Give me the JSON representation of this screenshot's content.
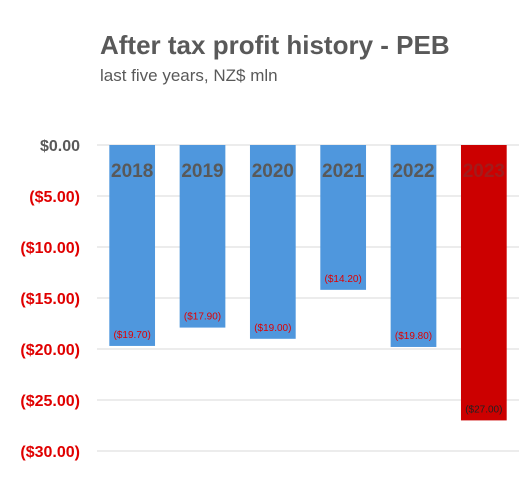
{
  "chart_data": {
    "type": "bar",
    "title": "After tax profit history - PEB",
    "subtitle": "last five years, NZ$ mln",
    "categories": [
      "2018",
      "2019",
      "2020",
      "2021",
      "2022",
      "2023"
    ],
    "values": [
      -19.7,
      -17.9,
      -19.0,
      -14.2,
      -19.8,
      -27.0
    ],
    "data_labels": [
      "($19.70)",
      "($17.90)",
      "($19.00)",
      "($14.20)",
      "($19.80)",
      "($27.00)"
    ],
    "bar_colors": [
      "#4f97dd",
      "#4f97dd",
      "#4f97dd",
      "#4f97dd",
      "#4f97dd",
      "#cc0000"
    ],
    "ylim": [
      -30,
      0
    ],
    "yticks": [
      0,
      -5,
      -10,
      -15,
      -20,
      -25,
      -30
    ],
    "ytick_labels": [
      "$0.00",
      "($5.00)",
      "($10.00)",
      "($15.00)",
      "($20.00)",
      "($25.00)",
      "($30.00)"
    ],
    "grid": true,
    "xlabel": "",
    "ylabel": "",
    "colors": {
      "positive_tick": "#595959",
      "negative_tick": "#e00000",
      "category_label": "#595959",
      "data_label": "#e00000",
      "gridline": "#d9d9d9"
    }
  }
}
